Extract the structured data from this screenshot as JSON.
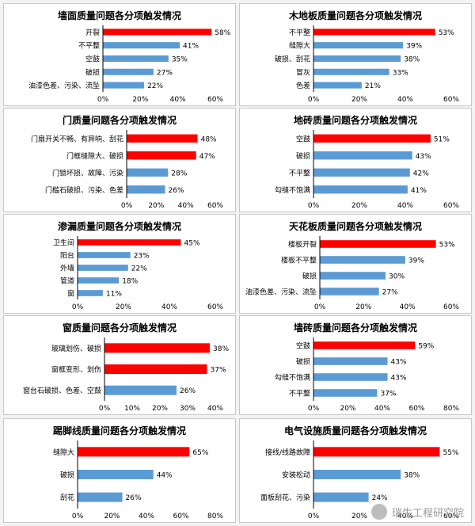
{
  "chart_data": [
    {
      "type": "bar",
      "title": "墙面质量问题各分项触发情况",
      "categories": [
        "开裂",
        "不平整",
        "空鼓",
        "破损",
        "油漆色差、污染、流坠"
      ],
      "values": [
        58,
        41,
        35,
        27,
        22
      ],
      "highlight": [
        0
      ],
      "value_labels": [
        "58%",
        "41%",
        "35%",
        "27%",
        "22%"
      ],
      "xlim": [
        0,
        60
      ],
      "xticks": [
        "0%",
        "20%",
        "40%",
        "60%"
      ]
    },
    {
      "type": "bar",
      "title": "木地板质量问题各分项触发情况",
      "categories": [
        "不平整",
        "缝隙大",
        "破损、刮花",
        "冒灰",
        "色差"
      ],
      "values": [
        53,
        39,
        38,
        33,
        21
      ],
      "highlight": [
        0
      ],
      "value_labels": [
        "53%",
        "39%",
        "38%",
        "33%",
        "21%"
      ],
      "xlim": [
        0,
        60
      ],
      "xticks": [
        "0%",
        "20%",
        "40%",
        "60%"
      ]
    },
    {
      "type": "bar",
      "title": "门质量问题各分项触发情况",
      "categories": [
        "门扇开关不畅、有异响、刮花",
        "门框缝隙大、破损",
        "门锁坏损、故障、污染",
        "门槛石破损、污染、色差"
      ],
      "values": [
        48,
        47,
        28,
        26
      ],
      "highlight": [
        0,
        1
      ],
      "value_labels": [
        "48%",
        "47%",
        "28%",
        "26%"
      ],
      "xlim": [
        0,
        60
      ],
      "xticks": [
        "0%",
        "20%",
        "40%",
        "60%"
      ]
    },
    {
      "type": "bar",
      "title": "地砖质量问题各分项触发情况",
      "categories": [
        "空鼓",
        "破损",
        "不平整",
        "勾缝不饱满"
      ],
      "values": [
        51,
        43,
        42,
        41
      ],
      "highlight": [
        0
      ],
      "value_labels": [
        "51%",
        "43%",
        "42%",
        "41%"
      ],
      "xlim": [
        0,
        60
      ],
      "xticks": [
        "0%",
        "20%",
        "40%",
        "60%"
      ]
    },
    {
      "type": "bar",
      "title": "渗漏质量问题各分项触发情况",
      "categories": [
        "卫生间",
        "阳台",
        "外墙",
        "管道",
        "窗"
      ],
      "values": [
        45,
        23,
        22,
        18,
        11
      ],
      "highlight": [
        0
      ],
      "value_labels": [
        "45%",
        "23%",
        "22%",
        "18%",
        "11%"
      ],
      "xlim": [
        0,
        60
      ],
      "xticks": [
        "0%",
        "20%",
        "40%",
        "60%"
      ]
    },
    {
      "type": "bar",
      "title": "天花板质量问题各分项触发情况",
      "categories": [
        "楼板开裂",
        "楼板不平整",
        "破损",
        "油漆色差、污染、流坠"
      ],
      "values": [
        53,
        39,
        30,
        27
      ],
      "highlight": [
        0
      ],
      "value_labels": [
        "53%",
        "39%",
        "30%",
        "27%"
      ],
      "xlim": [
        0,
        60
      ],
      "xticks": [
        "0%",
        "20%",
        "40%",
        "60%"
      ]
    },
    {
      "type": "bar",
      "title": "窗质量问题各分项触发情况",
      "categories": [
        "玻璃划伤、破损",
        "窗框变形、划伤",
        "窗台石破损、色差、空鼓"
      ],
      "values": [
        38,
        37,
        26
      ],
      "highlight": [
        0,
        1
      ],
      "value_labels": [
        "38%",
        "37%",
        "26%"
      ],
      "xlim": [
        0,
        40
      ],
      "xticks": [
        "0%",
        "10%",
        "20%",
        "30%",
        "40%"
      ]
    },
    {
      "type": "bar",
      "title": "墙砖质量问题各分项触发情况",
      "categories": [
        "空鼓",
        "破损",
        "勾缝不饱满",
        "不平整"
      ],
      "values": [
        59,
        43,
        43,
        37
      ],
      "highlight": [
        0
      ],
      "value_labels": [
        "59%",
        "43%",
        "43%",
        "37%"
      ],
      "xlim": [
        0,
        80
      ],
      "xticks": [
        "0%",
        "20%",
        "40%",
        "60%",
        "80%"
      ]
    },
    {
      "type": "bar",
      "title": "踢脚线质量问题各分项触发情况",
      "categories": [
        "缝隙大",
        "破损",
        "刮花"
      ],
      "values": [
        65,
        44,
        26
      ],
      "highlight": [
        0
      ],
      "value_labels": [
        "65%",
        "44%",
        "26%"
      ],
      "xlim": [
        0,
        80
      ],
      "xticks": [
        "0%",
        "20%",
        "40%",
        "60%",
        "80%"
      ]
    },
    {
      "type": "bar",
      "title": "电气设施质量问题各分项触发情况",
      "categories": [
        "接线/线路故障",
        "安装松动",
        "面板刮花、污染"
      ],
      "values": [
        55,
        38,
        24
      ],
      "highlight": [
        0
      ],
      "value_labels": [
        "55%",
        "38%",
        "24%"
      ],
      "xlim": [
        0,
        60
      ],
      "xticks": [
        "0%",
        "20%",
        "40%",
        "60%"
      ]
    }
  ],
  "colors": {
    "highlight": "#ff0000",
    "normal": "#5b9bd5",
    "axis": "#000000",
    "text": "#000000",
    "panel": "#ffffff",
    "border": "#c8c8c8"
  },
  "watermark": {
    "text": "瑞生工程研究院",
    "icon": "wechat-icon"
  }
}
